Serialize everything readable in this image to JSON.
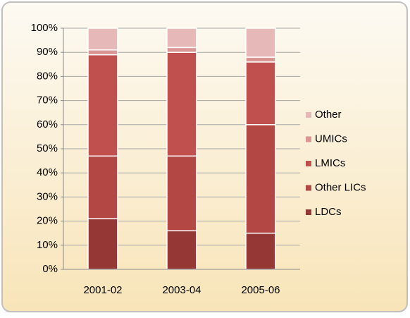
{
  "chart_data": {
    "type": "stacked_bar",
    "categories": [
      "2001-02",
      "2003-04",
      "2005-06"
    ],
    "series": [
      {
        "name": "LDCs",
        "color": "#953735",
        "values": [
          21,
          16,
          15
        ]
      },
      {
        "name": "Other LICs",
        "color": "#b24744",
        "values": [
          26,
          31,
          45
        ]
      },
      {
        "name": "LMICs",
        "color": "#c0504d",
        "values": [
          42,
          43,
          26
        ]
      },
      {
        "name": "UMICs",
        "color": "#d99694",
        "values": [
          2,
          2,
          2
        ]
      },
      {
        "name": "Other",
        "color": "#e6b9b8",
        "values": [
          9,
          8,
          12
        ]
      }
    ],
    "ylim": [
      0,
      100
    ],
    "yticks": [
      {
        "value": 0,
        "label": "0%"
      },
      {
        "value": 10,
        "label": "10%"
      },
      {
        "value": 20,
        "label": "20%"
      },
      {
        "value": 30,
        "label": "30%"
      },
      {
        "value": 40,
        "label": "40%"
      },
      {
        "value": 50,
        "label": "50%"
      },
      {
        "value": 60,
        "label": "60%"
      },
      {
        "value": 70,
        "label": "70%"
      },
      {
        "value": 80,
        "label": "80%"
      },
      {
        "value": 90,
        "label": "90%"
      },
      {
        "value": 100,
        "label": "100%"
      }
    ],
    "grid": true,
    "legend": "right"
  }
}
